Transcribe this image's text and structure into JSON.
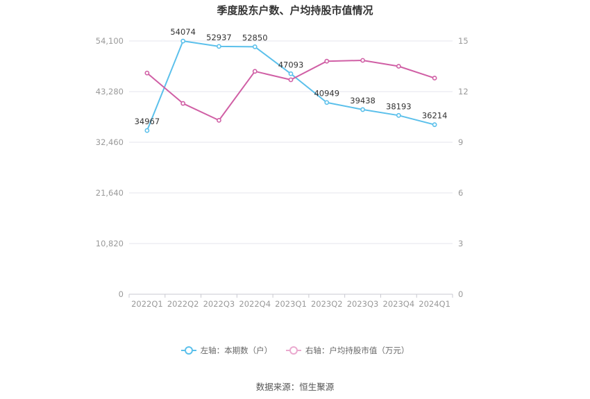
{
  "chart_data": {
    "type": "line",
    "title": "季度股东户数、户均持股市值情况",
    "categories": [
      "2022Q1",
      "2022Q2",
      "2022Q3",
      "2022Q4",
      "2023Q1",
      "2023Q2",
      "2023Q3",
      "2023Q4",
      "2024Q1"
    ],
    "left_axis": {
      "ticks": [
        "0",
        "10,820",
        "21,640",
        "32,460",
        "43,280",
        "54,100"
      ],
      "ylim": [
        0,
        54100
      ]
    },
    "right_axis": {
      "ticks": [
        "0",
        "3",
        "6",
        "9",
        "12",
        "15"
      ],
      "ylim": [
        0,
        15
      ]
    },
    "series": [
      {
        "name": "左轴：本期数（户）",
        "axis": "left",
        "color": "#5bc0eb",
        "values": [
          34967,
          54074,
          52937,
          52850,
          47093,
          40949,
          39438,
          38193,
          36214
        ],
        "labels": [
          "34967",
          "54074",
          "52937",
          "52850",
          "47093",
          "40949",
          "39438",
          "38193",
          "36214"
        ]
      },
      {
        "name": "右轴：户均持股市值（万元）",
        "axis": "right",
        "color": "#d05fa5",
        "values": [
          13.1,
          11.3,
          10.3,
          13.2,
          12.7,
          13.8,
          13.85,
          13.5,
          12.8
        ]
      }
    ],
    "grid": true,
    "legend_position": "bottom"
  },
  "source": "数据来源：恒生聚源"
}
